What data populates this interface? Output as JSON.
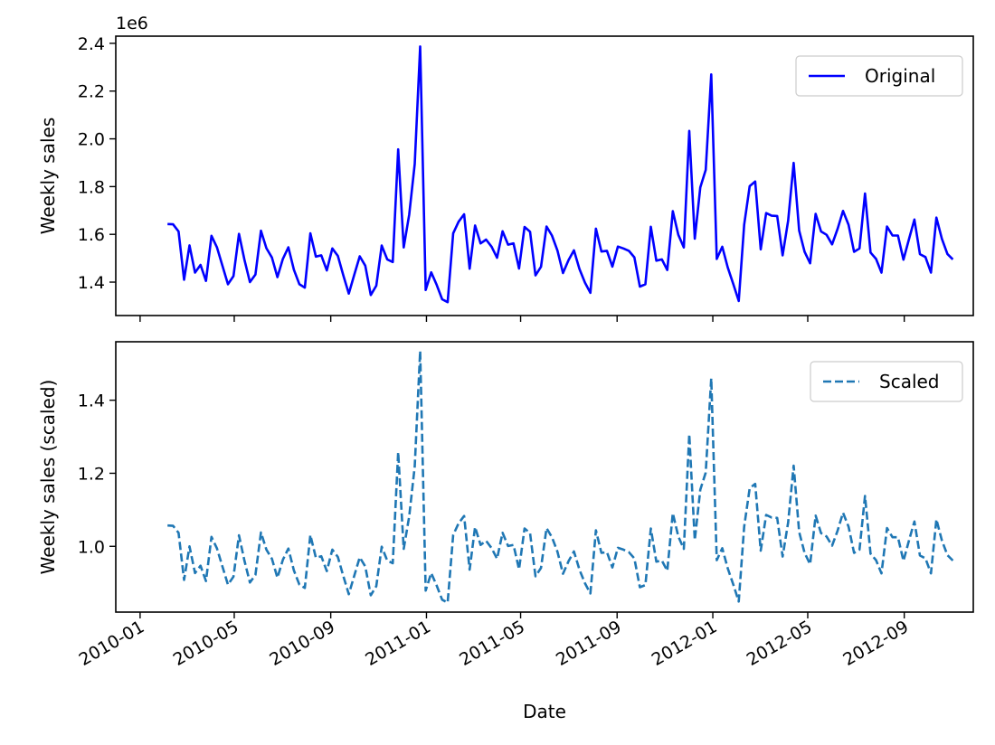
{
  "chart_data": [
    {
      "type": "line",
      "ylabel": "Weekly sales",
      "offset_label": "1e6",
      "yticks": [
        "1.4",
        "1.6",
        "1.8",
        "2.0",
        "2.2",
        "2.4"
      ],
      "ylim": [
        1.26,
        2.43
      ],
      "legend": {
        "position": "top-right"
      },
      "series": [
        {
          "name": "Original",
          "color": "#0000ff",
          "style": "solid",
          "values": [
            1.643,
            1.642,
            1.612,
            1.41,
            1.554,
            1.44,
            1.472,
            1.405,
            1.594,
            1.545,
            1.467,
            1.391,
            1.425,
            1.602,
            1.494,
            1.4,
            1.432,
            1.615,
            1.542,
            1.503,
            1.421,
            1.497,
            1.546,
            1.452,
            1.391,
            1.377,
            1.604,
            1.507,
            1.512,
            1.449,
            1.541,
            1.51,
            1.429,
            1.352,
            1.431,
            1.508,
            1.469,
            1.346,
            1.385,
            1.553,
            1.495,
            1.484,
            1.956,
            1.545,
            1.683,
            1.895,
            2.387,
            1.367,
            1.441,
            1.389,
            1.328,
            1.316,
            1.604,
            1.653,
            1.684,
            1.456,
            1.637,
            1.562,
            1.578,
            1.548,
            1.502,
            1.613,
            1.557,
            1.562,
            1.457,
            1.631,
            1.611,
            1.428,
            1.464,
            1.633,
            1.595,
            1.532,
            1.438,
            1.492,
            1.533,
            1.455,
            1.398,
            1.355,
            1.624,
            1.528,
            1.531,
            1.465,
            1.549,
            1.541,
            1.531,
            1.504,
            1.381,
            1.391,
            1.632,
            1.49,
            1.495,
            1.451,
            1.697,
            1.598,
            1.545,
            2.033,
            1.582,
            1.797,
            1.87,
            2.27,
            1.497,
            1.548,
            1.462,
            1.393,
            1.321,
            1.64,
            1.802,
            1.821,
            1.537,
            1.689,
            1.678,
            1.677,
            1.512,
            1.657,
            1.899,
            1.616,
            1.527,
            1.479,
            1.686,
            1.612,
            1.598,
            1.558,
            1.623,
            1.698,
            1.64,
            1.527,
            1.541,
            1.771,
            1.524,
            1.497,
            1.44,
            1.633,
            1.595,
            1.595,
            1.494,
            1.58,
            1.662,
            1.517,
            1.505,
            1.44,
            1.67,
            1.581,
            1.518,
            1.495
          ]
        }
      ]
    },
    {
      "type": "line",
      "xlabel": "Date",
      "ylabel": "Weekly sales (scaled)",
      "yticks": [
        "1.0",
        "1.2",
        "1.4"
      ],
      "ylim": [
        0.82,
        1.56
      ],
      "x_start": "2010-02-05",
      "x_step_days": 7,
      "xticks": [
        "2010-01",
        "2010-05",
        "2010-09",
        "2011-01",
        "2011-05",
        "2011-09",
        "2012-01",
        "2012-05",
        "2012-09"
      ],
      "legend": {
        "position": "top-right"
      },
      "series": [
        {
          "name": "Scaled",
          "color": "#1f77b4",
          "style": "dashed",
          "values": [
            1.057,
            1.056,
            1.037,
            0.908,
            1.0,
            0.927,
            0.947,
            0.905,
            1.026,
            0.994,
            0.944,
            0.895,
            0.917,
            1.03,
            0.961,
            0.901,
            0.922,
            1.038,
            0.991,
            0.966,
            0.914,
            0.963,
            0.994,
            0.934,
            0.895,
            0.886,
            1.031,
            0.969,
            0.973,
            0.932,
            0.991,
            0.971,
            0.919,
            0.869,
            0.92,
            0.97,
            0.945,
            0.866,
            0.891,
            0.999,
            0.961,
            0.954,
            1.258,
            0.993,
            1.082,
            1.219,
            1.535,
            0.879,
            0.927,
            0.893,
            0.854,
            0.846,
            1.031,
            1.063,
            1.083,
            0.936,
            1.053,
            1.004,
            1.015,
            0.995,
            0.966,
            1.037,
            1.001,
            1.004,
            0.937,
            1.049,
            1.036,
            0.918,
            0.941,
            1.05,
            1.025,
            0.985,
            0.925,
            0.959,
            0.986,
            0.936,
            0.899,
            0.871,
            1.044,
            0.982,
            0.984,
            0.942,
            0.996,
            0.991,
            0.984,
            0.967,
            0.888,
            0.894,
            1.049,
            0.958,
            0.961,
            0.933,
            1.091,
            1.027,
            0.993,
            1.307,
            1.017,
            1.155,
            1.202,
            1.46,
            0.962,
            0.995,
            0.94,
            0.896,
            0.849,
            1.054,
            1.159,
            1.171,
            0.988,
            1.086,
            1.079,
            1.078,
            0.972,
            1.065,
            1.221,
            1.039,
            0.982,
            0.951,
            1.084,
            1.036,
            1.027,
            1.002,
            1.043,
            1.092,
            1.054,
            0.982,
            0.991,
            1.138,
            0.98,
            0.962,
            0.926,
            1.05,
            1.025,
            1.025,
            0.96,
            1.016,
            1.068,
            0.975,
            0.967,
            0.926,
            1.074,
            1.016,
            0.976,
            0.961
          ]
        }
      ]
    }
  ]
}
